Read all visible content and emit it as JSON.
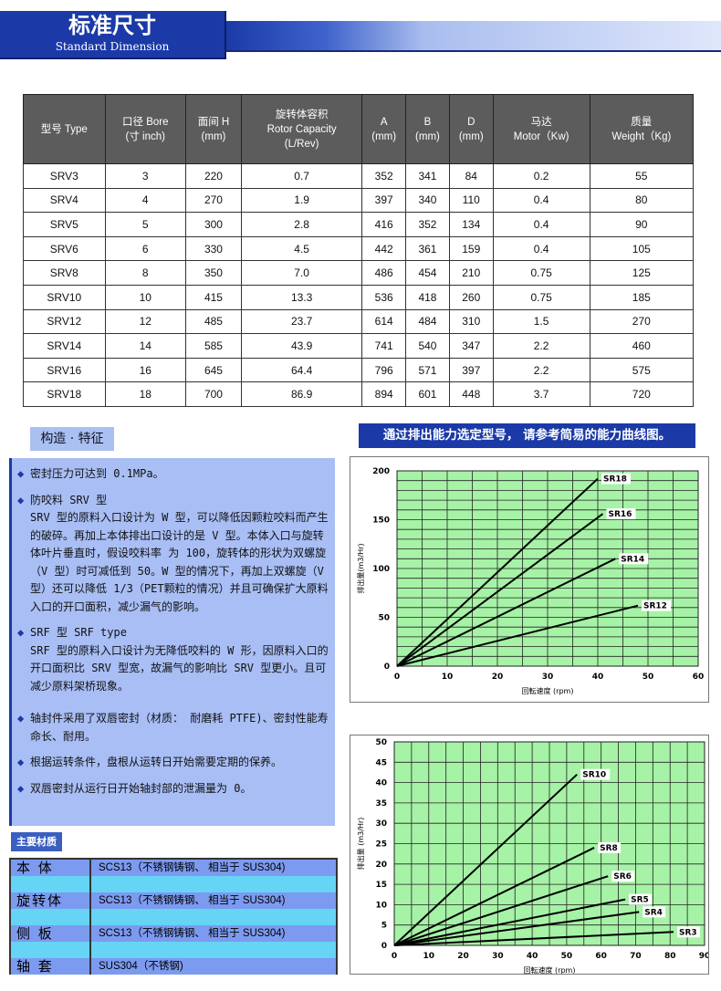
{
  "header": {
    "title": "标准尺寸",
    "subtitle": "Standard Dimension"
  },
  "table": {
    "headers": [
      [
        "型号 Type"
      ],
      [
        "口径 Bore",
        "(寸 inch)"
      ],
      [
        "面间 H",
        "(mm)"
      ],
      [
        "旋转体容积",
        "Rotor Capacity",
        "(L/Rev)"
      ],
      [
        "A",
        "(mm)"
      ],
      [
        "B",
        "(mm)"
      ],
      [
        "D",
        "(mm)"
      ],
      [
        "马达",
        "Motor（Kw)"
      ],
      [
        "质量",
        "Weight（Kg)"
      ]
    ],
    "rows": [
      [
        "SRV3",
        "3",
        "220",
        "0.7",
        "352",
        "341",
        "84",
        "0.2",
        "55"
      ],
      [
        "SRV4",
        "4",
        "270",
        "1.9",
        "397",
        "340",
        "110",
        "0.4",
        "80"
      ],
      [
        "SRV5",
        "5",
        "300",
        "2.8",
        "416",
        "352",
        "134",
        "0.4",
        "90"
      ],
      [
        "SRV6",
        "6",
        "330",
        "4.5",
        "442",
        "361",
        "159",
        "0.4",
        "105"
      ],
      [
        "SRV8",
        "8",
        "350",
        "7.0",
        "486",
        "454",
        "210",
        "0.75",
        "125"
      ],
      [
        "SRV10",
        "10",
        "415",
        "13.3",
        "536",
        "418",
        "260",
        "0.75",
        "185"
      ],
      [
        "SRV12",
        "12",
        "485",
        "23.7",
        "614",
        "484",
        "310",
        "1.5",
        "270"
      ],
      [
        "SRV14",
        "14",
        "585",
        "43.9",
        "741",
        "540",
        "347",
        "2.2",
        "460"
      ],
      [
        "SRV16",
        "16",
        "645",
        "64.4",
        "796",
        "571",
        "397",
        "2.2",
        "575"
      ],
      [
        "SRV18",
        "18",
        "700",
        "86.9",
        "894",
        "601",
        "448",
        "3.7",
        "720"
      ]
    ]
  },
  "features": {
    "title": "构造 · 特征",
    "items": [
      "密封压力可达到 0.1MPa。",
      "防咬料 SRV 型\nSRV 型的原料入口设计为 W 型，可以降低因颗粒咬料而产生的破碎。再加上本体排出口设计的是 V 型。本体入口与旋转体叶片垂直时，假设咬料率 为 100，旋转体的形状为双螺旋（V 型）时可减低到 50。W 型的情况下，再加上双螺旋（V 型）还可以降低 1/3（PET颗粒的情况）并且可确保扩大原料入口的开口面积，减少漏气的影响。",
      "SRF 型 SRF type\nSRF 型的原料入口设计为无降低咬料的 W 形，因原料入口的开口面积比 SRV 型宽，故漏气的影响比 SRV 型更小。且可减少原料架桥现象。",
      "轴封件采用了双唇密封（材质： 耐磨耗 PTFE)、密封性能寿命长、耐用。",
      "根据运转条件，盘根从运转日开始需要定期的保养。",
      "双唇密封从运行日开始轴封部的泄漏量为 0。"
    ]
  },
  "chart_title": "通过排出能力选定型号， 请参考简易的能力曲线图。",
  "materials": {
    "title": "主要材质",
    "rows": [
      {
        "key": "本 体",
        "value": "SCS13（不锈钢铸钢、 相当于 SUS304)"
      },
      {
        "key": "旋转体",
        "value": "SCS13（不锈钢铸钢、 相当于 SUS304)"
      },
      {
        "key": "侧 板",
        "value": "SCS13（不锈钢铸钢、 相当于 SUS304)"
      },
      {
        "key": "轴 套",
        "value": "SUS304（不锈钢)"
      }
    ]
  },
  "colors": {
    "primary": "#1b3aa8",
    "plot_bg": "#a6f2a6",
    "feature_bg": "#a8bef5"
  },
  "chart_data": [
    {
      "type": "line",
      "xlabel": "回転速度 (rpm)",
      "ylabel": "排出量(m3/Hr)",
      "xlim": [
        0,
        60
      ],
      "ylim": [
        0,
        200
      ],
      "xticks": [
        0,
        10,
        20,
        30,
        40,
        50,
        60
      ],
      "yticks": [
        0,
        50,
        100,
        150,
        200
      ],
      "grid": true,
      "series": [
        {
          "name": "SR18",
          "x": [
            0,
            40
          ],
          "y": [
            0,
            192
          ]
        },
        {
          "name": "SR16",
          "x": [
            0,
            41
          ],
          "y": [
            0,
            156
          ]
        },
        {
          "name": "SR14",
          "x": [
            0,
            43.5
          ],
          "y": [
            0,
            110
          ]
        },
        {
          "name": "SR12",
          "x": [
            0,
            48
          ],
          "y": [
            0,
            62
          ]
        }
      ]
    },
    {
      "type": "line",
      "xlabel": "回転速度 (rpm)",
      "ylabel": "排出量 (m3/Hr)",
      "xlim": [
        0,
        90
      ],
      "ylim": [
        0,
        50
      ],
      "xticks": [
        0,
        10,
        20,
        30,
        40,
        50,
        60,
        70,
        80,
        90
      ],
      "yticks": [
        0,
        5,
        10,
        15,
        20,
        25,
        30,
        35,
        40,
        45,
        50
      ],
      "grid": true,
      "series": [
        {
          "name": "SR10",
          "x": [
            0,
            53
          ],
          "y": [
            0,
            42
          ]
        },
        {
          "name": "SR8",
          "x": [
            0,
            58
          ],
          "y": [
            0,
            24
          ]
        },
        {
          "name": "SR6",
          "x": [
            0,
            62
          ],
          "y": [
            0,
            17
          ]
        },
        {
          "name": "SR5",
          "x": [
            0,
            67
          ],
          "y": [
            0,
            11.3
          ]
        },
        {
          "name": "SR4",
          "x": [
            0,
            71
          ],
          "y": [
            0,
            8.2
          ]
        },
        {
          "name": "SR3",
          "x": [
            0,
            81
          ],
          "y": [
            0,
            3.3
          ]
        }
      ]
    }
  ]
}
